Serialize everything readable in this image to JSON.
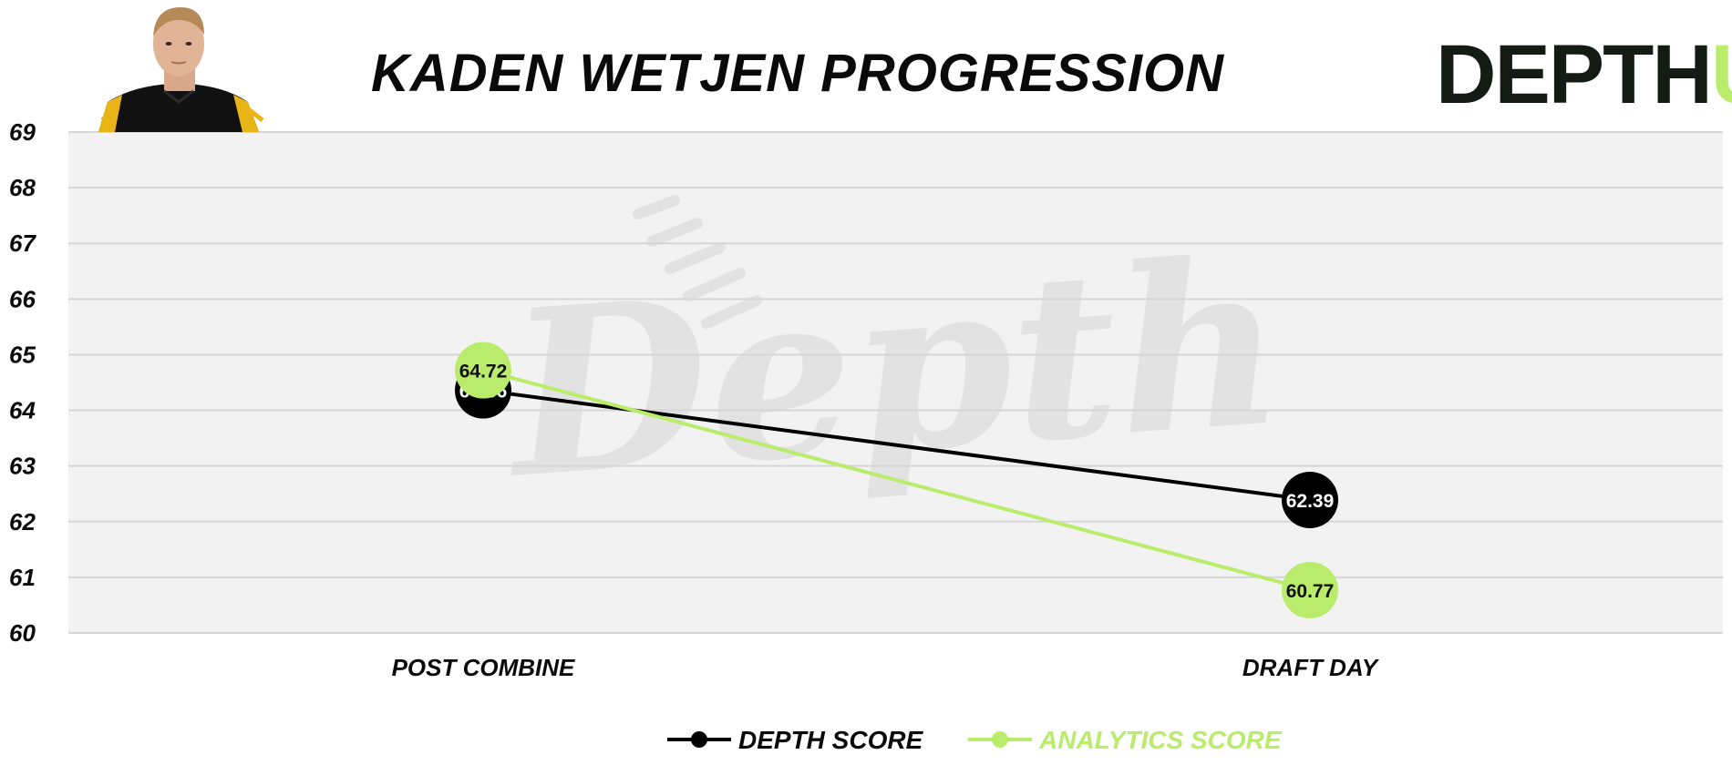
{
  "title": "KADEN WETJEN PROGRESSION",
  "logo": {
    "text_main": "DEPTH",
    "text_accent": "U",
    "main_color": "#141a14",
    "accent_color": "#b9ec6b"
  },
  "watermark": {
    "text": "Depth"
  },
  "avatar": {
    "icon": "player-photo-icon"
  },
  "colors": {
    "plot_background": "#f2f2f2",
    "grid": "#d6d6d6",
    "depth_series": "#000000",
    "analytics_series": "#b9ec6b"
  },
  "chart_data": {
    "type": "line",
    "title": "KADEN WETJEN PROGRESSION",
    "categories": [
      "POST COMBINE",
      "DRAFT DAY"
    ],
    "ylim": [
      60,
      69
    ],
    "yticks": [
      "60",
      "61",
      "62",
      "63",
      "64",
      "65",
      "66",
      "67",
      "68",
      "69"
    ],
    "grid": true,
    "legend_position": "bottom-center",
    "series": [
      {
        "name": "DEPTH SCORE",
        "values": [
          64.36,
          62.39
        ],
        "labels": [
          "64.36",
          "62.39"
        ],
        "color": "#000000",
        "label_color": "#ffffff"
      },
      {
        "name": "ANALYTICS SCORE",
        "values": [
          64.72,
          60.77
        ],
        "labels": [
          "64.72",
          "60.77"
        ],
        "color": "#b9ec6b",
        "label_color": "#111111"
      }
    ]
  }
}
